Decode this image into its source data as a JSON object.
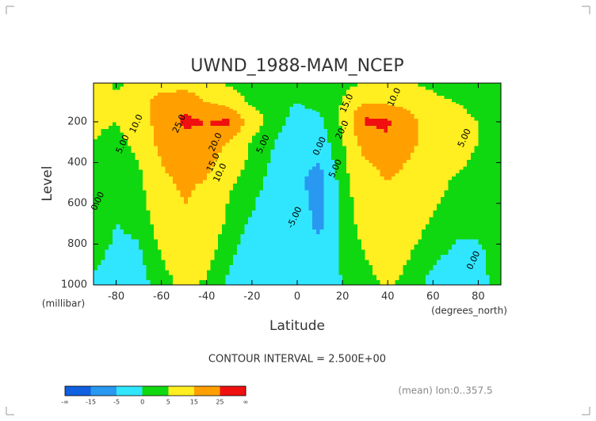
{
  "chart_data": {
    "type": "contour",
    "title": "UWND_1988-MAM_NCEP",
    "xlabel": "Latitude",
    "xunits": "(degrees_north)",
    "ylabel": "Level",
    "yunits": "(millibar)",
    "xlim": [
      -90,
      90
    ],
    "xticks": [
      -80,
      -60,
      -40,
      -20,
      0,
      20,
      40,
      60,
      80
    ],
    "ylim": [
      1000,
      10
    ],
    "yticks": [
      200,
      400,
      600,
      800,
      1000
    ],
    "x": [
      -90,
      -80,
      -70,
      -60,
      -50,
      -40,
      -30,
      -20,
      -10,
      0,
      10,
      20,
      30,
      40,
      50,
      60,
      70,
      80,
      90
    ],
    "y": [
      1000,
      850,
      700,
      500,
      400,
      300,
      200,
      150,
      100,
      10
    ],
    "z": [
      [
        -1,
        -2,
        -2,
        2,
        7,
        4,
        -1,
        -4,
        -3,
        -2,
        -3,
        0,
        3,
        6,
        3,
        -2,
        -2,
        -1,
        1
      ],
      [
        1,
        -1,
        -1,
        5,
        10,
        7,
        1,
        -3,
        -3,
        -2,
        -4,
        1,
        5,
        8,
        5,
        1,
        -1,
        -1,
        2
      ],
      [
        3,
        0,
        1,
        8,
        13,
        10,
        3,
        -1,
        -3,
        -3,
        -6,
        2,
        7,
        10,
        8,
        4,
        1,
        1,
        2
      ],
      [
        3,
        0,
        3,
        12,
        17,
        14,
        6,
        2,
        -2,
        -4,
        -7,
        2,
        10,
        15,
        12,
        7,
        4,
        3,
        3
      ],
      [
        4,
        1,
        5,
        15,
        20,
        18,
        9,
        3,
        -1,
        -4,
        -5,
        3,
        14,
        18,
        14,
        9,
        6,
        4,
        3
      ],
      [
        5,
        3,
        7,
        18,
        23,
        22,
        14,
        4,
        0,
        -3,
        -3,
        4,
        20,
        24,
        17,
        10,
        7,
        5,
        4
      ],
      [
        6,
        5,
        9,
        20,
        26,
        25,
        27,
        8,
        2,
        -2,
        -1,
        6,
        26,
        26,
        18,
        9,
        7,
        5,
        4
      ],
      [
        6,
        5,
        10,
        21,
        25,
        23,
        20,
        7,
        2,
        -1,
        0,
        6,
        24,
        22,
        15,
        8,
        6,
        4,
        4
      ],
      [
        7,
        6,
        11,
        20,
        20,
        15,
        10,
        3,
        1,
        0,
        2,
        5,
        14,
        13,
        10,
        6,
        5,
        4,
        3
      ],
      [
        8,
        4,
        6,
        10,
        12,
        10,
        4,
        1,
        0,
        2,
        1,
        3,
        5,
        6,
        5,
        4,
        3,
        2,
        2
      ]
    ],
    "levels": [
      -15,
      -5,
      0,
      5,
      15,
      25
    ],
    "colors": [
      "#1060e0",
      "#2898f0",
      "#30e6ff",
      "#10d810",
      "#ffee20",
      "#ffa000",
      "#f01010"
    ],
    "colorbar_ends": [
      "-∞",
      "∞"
    ],
    "annotations": [
      {
        "text": "25.0",
        "x": -52,
        "y": 210
      },
      {
        "text": "20.0",
        "x": -36,
        "y": 300
      },
      {
        "text": "15.0",
        "x": -37,
        "y": 400
      },
      {
        "text": "10.0",
        "x": -34,
        "y": 450
      },
      {
        "text": "10.0",
        "x": -71,
        "y": 210
      },
      {
        "text": "5.00",
        "x": -77,
        "y": 310
      },
      {
        "text": "5.00",
        "x": -15,
        "y": 310
      },
      {
        "text": "0.00",
        "x": -88,
        "y": 590
      },
      {
        "text": "0.00",
        "x": 10,
        "y": 320
      },
      {
        "text": "5.00",
        "x": 17,
        "y": 430
      },
      {
        "text": "-5.00",
        "x": -1,
        "y": 670
      },
      {
        "text": "20.0",
        "x": 20,
        "y": 240
      },
      {
        "text": "15.0",
        "x": 22,
        "y": 110
      },
      {
        "text": "10.0",
        "x": 43,
        "y": 80
      },
      {
        "text": "5.00",
        "x": 74,
        "y": 280
      },
      {
        "text": "0.00",
        "x": 78,
        "y": 880
      }
    ],
    "footer": "CONTOUR INTERVAL = 2.500E+00",
    "note": "(mean) lon:0..357.5"
  }
}
